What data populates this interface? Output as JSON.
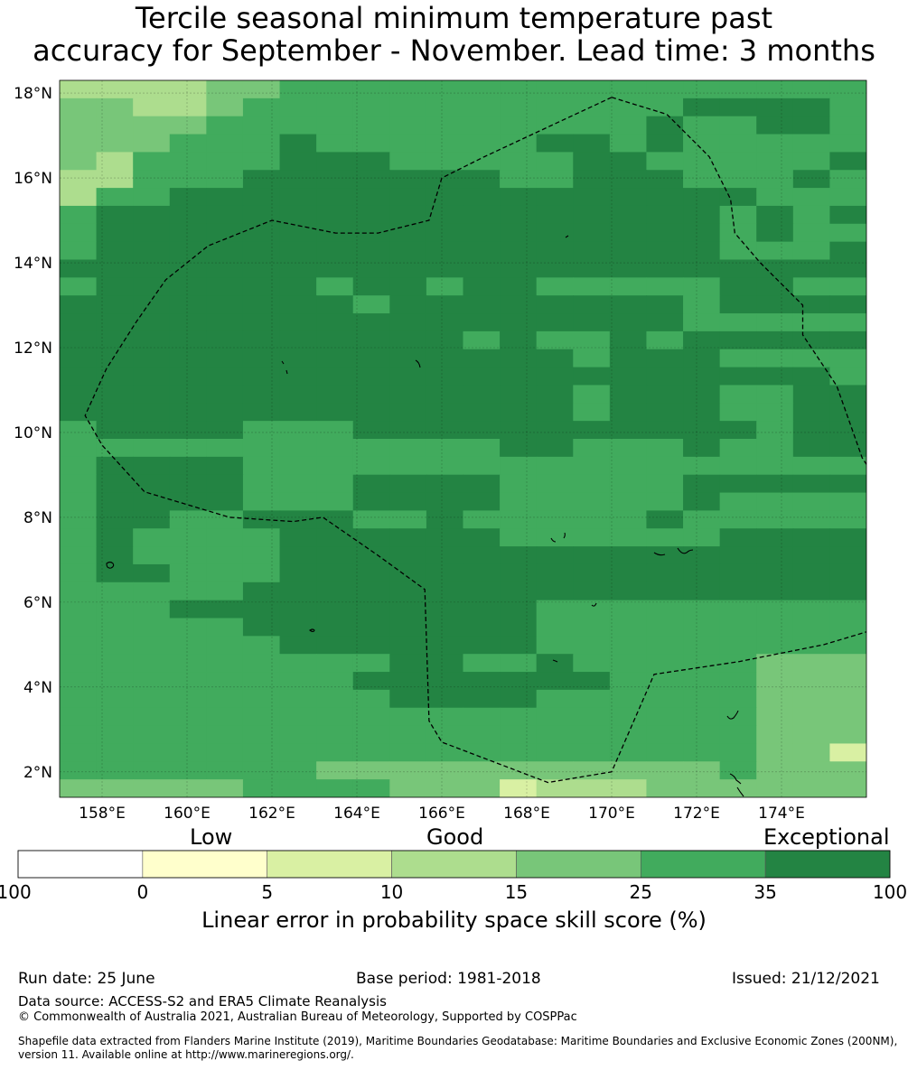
{
  "title_line1": "Tercile seasonal minimum temperature past",
  "title_line2": "accuracy for September - November. Lead time: 3 months",
  "lat_labels": [
    "18°N",
    "16°N",
    "14°N",
    "12°N",
    "10°N",
    "8°N",
    "6°N",
    "4°N",
    "2°N"
  ],
  "lon_labels": [
    "158°E",
    "160°E",
    "162°E",
    "164°E",
    "166°E",
    "168°E",
    "170°E",
    "172°E",
    "174°E"
  ],
  "categories": {
    "low": "Low",
    "good": "Good",
    "exceptional": "Exceptional"
  },
  "colorbar": {
    "ticks": [
      "-100",
      "0",
      "5",
      "10",
      "15",
      "25",
      "35",
      "100"
    ],
    "colors": [
      "#ffffff",
      "#ffffcc",
      "#d9f0a3",
      "#addd8e",
      "#78c679",
      "#41ab5d",
      "#238443"
    ],
    "title": "Linear error in probability space skill score (%)"
  },
  "footer": {
    "run_date": "Run date: 25 June",
    "base_period": "Base period: 1981-2018",
    "issued": "Issued: 21/12/2021",
    "data_source": "Data source: ACCESS-S2 and ERA5 Climate Reanalysis",
    "copyright": "© Commonwealth of Australia 2021, Australian Bureau of Meteorology, Supported by COSPPac",
    "shapefile_line1": "Shapefile data extracted from Flanders Marine Institute (2019), Maritime Boundaries Geodatabase: Maritime Boundaries and Exclusive Economic Zones (200NM),",
    "shapefile_line2": "version 11. Available online at http://www.marineregions.org/."
  },
  "map": {
    "lon_range": [
      157,
      176
    ],
    "lat_range": [
      1.4,
      18.3
    ],
    "grid_rows_north_to_south": [
      "3333445555555555555555",
      "4433455555555555566665",
      "4444555555555555655665",
      "4445556555555665655555",
      "4355556665555566555556",
      "3355566666665566655565",
      "3556666666666666666555",
      "5666666666666666665656",
      "5666666666666666665655",
      "5666666666666666665556",
      "6666666666666666666666",
      "5666666566566555556655",
      "6666666656666666656666",
      "6666666666666666655555",
      "6666666666656556566666",
      "6666666666666656665555",
      "6666666666666666666665",
      "6666666666666656665566",
      "6666666666666656665566",
      "5666655566666666666566",
      "5555555555556655565566",
      "5666655555555555555555",
      "5666655566665555566666",
      "5666655566665555565555",
      "5665566655655555655555",
      "5655556666665555556666",
      "5655556666666666666666",
      "5665556666666666666666",
      "5555566666666666666666",
      "5556666666666555555555",
      "5555566666666555555555",
      "5555556666666555555555",
      "5555555556655655555444",
      "5555555566666665555444",
      "5555555556666555555444",
      "5555555555555555555444",
      "5555555555555555555444",
      "5555555555555555555442",
      "5555555444444444445444",
      "4444455554442333444444"
    ],
    "eez_boundary": [
      [
        170.0,
        17.9
      ],
      [
        171.3,
        17.5
      ],
      [
        172.3,
        16.5
      ],
      [
        172.8,
        15.5
      ],
      [
        172.9,
        14.7
      ],
      [
        173.5,
        14.0
      ],
      [
        174.5,
        13.0
      ],
      [
        174.5,
        12.3
      ],
      [
        175.3,
        11.1
      ],
      [
        175.9,
        9.4
      ],
      [
        176.5,
        8.5
      ],
      [
        176.9,
        7.3
      ],
      [
        177.0,
        5.6
      ],
      [
        175.0,
        5.0
      ],
      [
        173.0,
        4.6
      ],
      [
        171.0,
        4.3
      ],
      [
        170.0,
        2.0
      ],
      [
        168.5,
        1.75
      ],
      [
        166.0,
        2.7
      ],
      [
        165.7,
        3.2
      ],
      [
        165.6,
        6.3
      ],
      [
        164.5,
        7.1
      ],
      [
        163.2,
        8.0
      ],
      [
        162.5,
        7.9
      ],
      [
        161.0,
        8.0
      ],
      [
        159.0,
        8.6
      ],
      [
        158.0,
        9.7
      ],
      [
        157.6,
        10.4
      ],
      [
        158.1,
        11.5
      ],
      [
        158.8,
        12.6
      ],
      [
        159.5,
        13.6
      ],
      [
        160.5,
        14.4
      ],
      [
        162.0,
        15.0
      ],
      [
        163.5,
        14.7
      ],
      [
        164.5,
        14.7
      ],
      [
        165.7,
        15.0
      ],
      [
        166.0,
        16.0
      ],
      [
        167.0,
        16.5
      ],
      [
        168.5,
        17.2
      ],
      [
        170.0,
        17.9
      ]
    ]
  }
}
